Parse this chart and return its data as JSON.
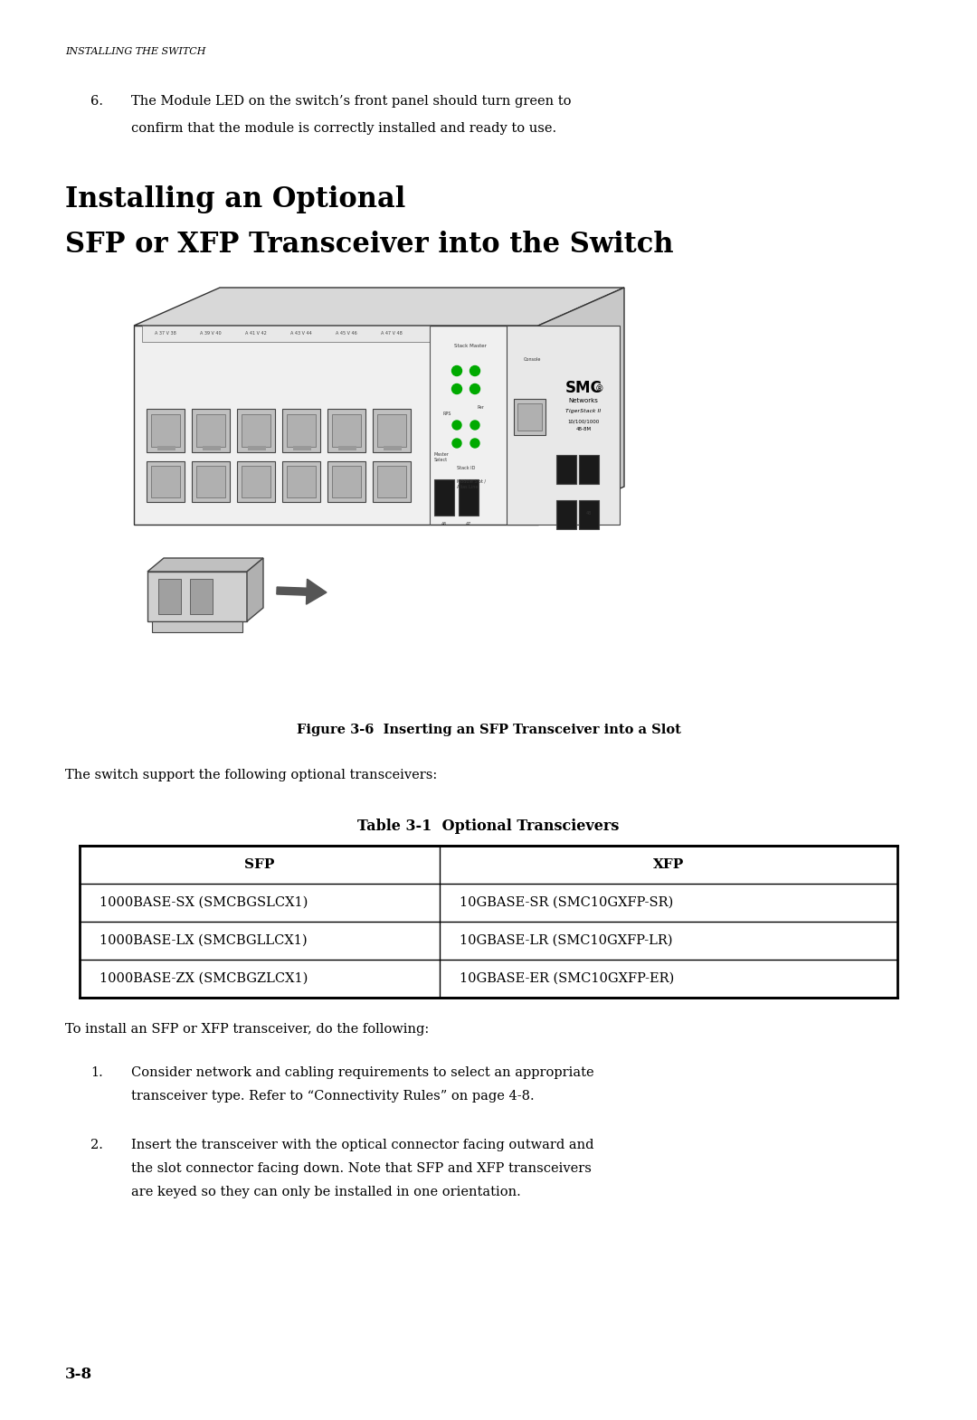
{
  "bg_color": "#ffffff",
  "page_width": 10.8,
  "page_height": 15.7,
  "header_text": "INSTALLING THE SWITCH",
  "item6_line1": "The Module LED on the switch’s front panel should turn green to",
  "item6_line2": "confirm that the module is correctly installed and ready to use.",
  "section_title_line1": "Installing an Optional",
  "section_title_line2": "SFP or XFP Transceiver into the Switch",
  "figure_caption": "Figure 3-6  Inserting an SFP Transceiver into a Slot",
  "intro_text": "The switch support the following optional transceivers:",
  "table_title": "Table 3-1  Optional Transcievers",
  "table_headers": [
    "SFP",
    "XFP"
  ],
  "table_rows": [
    [
      "1000BASE-SX (SMCBGSLCX1)",
      "10GBASE-SR (SMC10GXFP-SR)"
    ],
    [
      "1000BASE-LX (SMCBGLLCX1)",
      "10GBASE-LR (SMC10GXFP-LR)"
    ],
    [
      "1000BASE-ZX (SMCBGZLCX1)",
      "10GBASE-ER (SMC10GXFP-ER)"
    ]
  ],
  "install_intro": "To install an SFP or XFP transceiver, do the following:",
  "step1_label": "1.",
  "step1_line1": "Consider network and cabling requirements to select an appropriate",
  "step1_line2": "transceiver type. Refer to “Connectivity Rules” on page 4-8.",
  "step2_label": "2.",
  "step2_line1": "Insert the transceiver with the optical connector facing outward and",
  "step2_line2": "the slot connector facing down. Note that SFP and XFP transceivers",
  "step2_line3": "are keyed so they can only be installed in one orientation.",
  "page_number": "3-8"
}
